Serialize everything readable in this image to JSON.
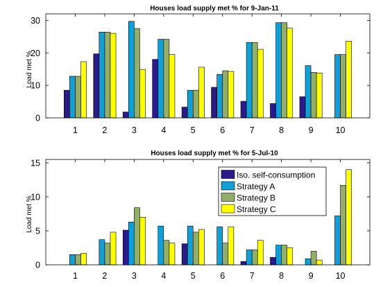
{
  "colors": {
    "iso": "#2b1a87",
    "strategy_a": "#109fd6",
    "strategy_b": "#93ae68",
    "strategy_c": "#ffff00"
  },
  "chart_data": [
    {
      "type": "bar",
      "title": "Houses load supply met % for 9-Jan-11",
      "xlabel": "",
      "ylabel": "Load met %",
      "categories": [
        "1",
        "2",
        "3",
        "4",
        "5",
        "6",
        "7",
        "8",
        "9",
        "10"
      ],
      "ylim": [
        0,
        32
      ],
      "yticks": [
        0,
        10,
        20,
        30
      ],
      "grid": false,
      "series": [
        {
          "name": "Iso. self-consumption",
          "values": [
            8.5,
            19.7,
            1.8,
            18.0,
            3.3,
            9.4,
            5.1,
            4.4,
            6.5,
            0
          ]
        },
        {
          "name": "Strategy A",
          "values": [
            12.8,
            26.4,
            29.7,
            24.2,
            8.5,
            13.4,
            23.2,
            29.3,
            16.1,
            19.5
          ]
        },
        {
          "name": "Strategy B",
          "values": [
            12.8,
            26.4,
            27.5,
            24.2,
            8.5,
            14.5,
            23.2,
            29.3,
            14.0,
            19.5
          ]
        },
        {
          "name": "Strategy C",
          "values": [
            17.3,
            26.0,
            14.9,
            19.5,
            15.6,
            14.3,
            21.1,
            27.6,
            13.8,
            23.6
          ]
        }
      ]
    },
    {
      "type": "bar",
      "title": "Houses load supply met % for 5-Jul-10",
      "xlabel": "",
      "ylabel": "Load met %",
      "categories": [
        "1",
        "2",
        "3",
        "4",
        "5",
        "6",
        "7",
        "8",
        "9",
        "10"
      ],
      "ylim": [
        0,
        15.5
      ],
      "yticks": [
        0,
        5,
        10,
        15
      ],
      "grid": false,
      "legend": "top-right",
      "series": [
        {
          "name": "Iso. self-consumption",
          "values": [
            0,
            0,
            5.1,
            0,
            3.1,
            0,
            0.5,
            1.1,
            0,
            0
          ]
        },
        {
          "name": "Strategy A",
          "values": [
            1.5,
            3.7,
            6.3,
            5.7,
            5.7,
            5.6,
            2.2,
            2.9,
            0.9,
            7.2
          ]
        },
        {
          "name": "Strategy B",
          "values": [
            1.5,
            3.2,
            8.4,
            3.6,
            4.8,
            3.2,
            2.2,
            2.9,
            2.0,
            11.7
          ]
        },
        {
          "name": "Strategy C",
          "values": [
            1.7,
            4.8,
            7.0,
            3.2,
            5.2,
            5.6,
            3.6,
            2.5,
            0.7,
            14.0
          ]
        }
      ]
    }
  ]
}
